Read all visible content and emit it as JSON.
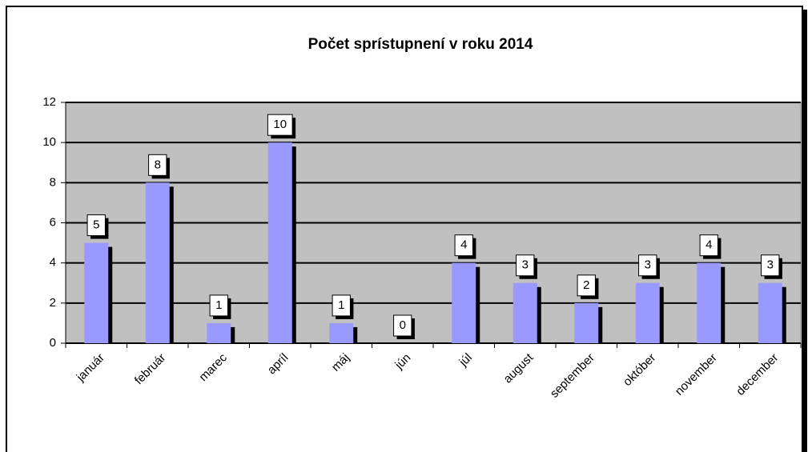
{
  "chart_data": {
    "type": "bar",
    "title": "Počet sprístupnení v roku 2014",
    "categories": [
      "január",
      "február",
      "marec",
      "apríl",
      "máj",
      "jún",
      "júl",
      "august",
      "september",
      "október",
      "november",
      "december"
    ],
    "values": [
      5,
      8,
      1,
      10,
      1,
      0,
      4,
      3,
      2,
      3,
      4,
      3
    ],
    "color": "#9999ff",
    "ylim": [
      0,
      12
    ],
    "yticks": [
      0,
      2,
      4,
      6,
      8,
      10,
      12
    ],
    "grid": true
  }
}
